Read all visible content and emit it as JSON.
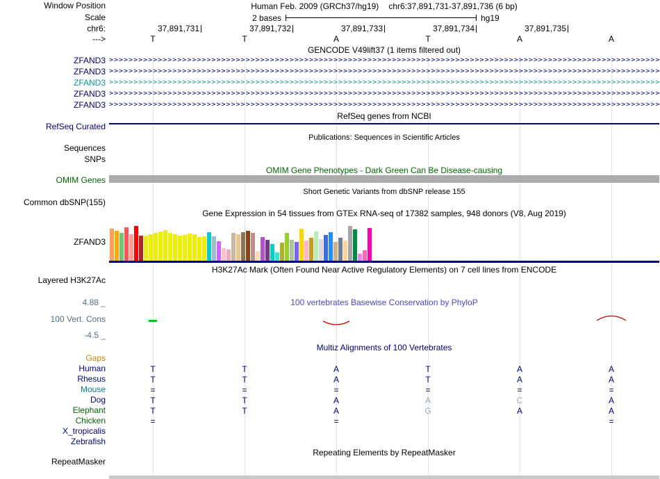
{
  "window_position": {
    "label": "Window Position",
    "assembly": "Human Feb. 2009 (GRCh37/hg19)",
    "range": "chr6:37,891,731-37,891,736 (6 bp)"
  },
  "scale_row": {
    "label": "Scale",
    "value": "2 bases",
    "genome": "hg19"
  },
  "ruler": {
    "label": "chr6:",
    "ticks": [
      "37,891,731",
      "37,891,732",
      "37,891,733",
      "37,891,734",
      "37,891,735"
    ]
  },
  "sequence_row": {
    "label": "--->",
    "bases": [
      "T",
      "T",
      "A",
      "T",
      "A",
      "A"
    ]
  },
  "gencode": {
    "header": "GENCODE V49lift37 (1 items filtered out)",
    "glyph": ">",
    "transcripts": [
      {
        "label": "ZFAND3",
        "color": "#000080"
      },
      {
        "label": "ZFAND3",
        "color": "#000080"
      },
      {
        "label": "ZFAND3",
        "color": "#009999"
      },
      {
        "label": "ZFAND3",
        "color": "#000080"
      },
      {
        "label": "ZFAND3",
        "color": "#000080"
      }
    ]
  },
  "refseq": {
    "header": "RefSeq genes from NCBI",
    "label": "RefSeq Curated",
    "color": "#000080"
  },
  "publications": {
    "header": "Publications: Sequences in Scientific Articles",
    "rows": [
      {
        "label": "Sequences"
      },
      {
        "label": "SNPs"
      }
    ]
  },
  "omim": {
    "header": "OMIM Gene Phenotypes - Dark Green Can Be Disease-causing",
    "header_color": "#006400",
    "label": "OMIM Genes",
    "bar_color": "#acacac"
  },
  "dbsnp": {
    "header": "Short Genetic Variants from dbSNP release 155",
    "label": "Common dbSNP(155)"
  },
  "gtex": {
    "header": "Gene Expression in 54 tissues from GTEx RNA-seq of 17382 samples, 948 donors (V8, Aug 2019)",
    "label": "ZFAND3",
    "baseline_color": "#000080"
  },
  "h3k27ac": {
    "header": "H3K27Ac Mark (Often Found Near Active Regulatory Elements) on 7 cell lines from ENCODE",
    "label": "Layered H3K27Ac"
  },
  "conservation": {
    "header": "100 vertebrates Basewise Conservation by PhyloP",
    "header_color": "#4747d1",
    "label": "100 Vert. Cons",
    "max_label": "4.88 _",
    "min_label": "-4.5 _",
    "label_color": "#4f7087",
    "features": [
      {
        "type": "tick",
        "col": 0,
        "color": "#00c800"
      },
      {
        "type": "dip",
        "col": 2,
        "color": "#dd0000"
      },
      {
        "type": "bump",
        "col": 5,
        "color": "#dd0000"
      }
    ]
  },
  "multiz": {
    "header": "Multiz Alignments of 100 Vertebrates",
    "header_color": "#000080",
    "letter_color": "#000080",
    "muted_color": "#98a8bc",
    "species": [
      {
        "label": "Gaps",
        "color": "#c8860b",
        "cells": [
          "",
          "",
          "",
          "",
          "",
          ""
        ]
      },
      {
        "label": "Human",
        "color": "#000080",
        "cells": [
          "T",
          "T",
          "A",
          "T",
          "A",
          "A"
        ]
      },
      {
        "label": "Rhesus",
        "color": "#000080",
        "cells": [
          "T",
          "T",
          "A",
          "T",
          "A",
          "A"
        ]
      },
      {
        "label": "Mouse",
        "color": "#008080",
        "cells": [
          "=",
          "=",
          "=",
          "=",
          "=",
          "="
        ]
      },
      {
        "label": "Dog",
        "color": "#000080",
        "cells": [
          "T",
          "T",
          "A",
          "A",
          "C",
          "A"
        ],
        "muted": [
          3,
          4
        ]
      },
      {
        "label": "Elephant",
        "color": "#006400",
        "cells": [
          "T",
          "T",
          "A",
          "G",
          "A",
          "A"
        ],
        "muted": [
          3
        ]
      },
      {
        "label": "Chicken",
        "color": "#006400",
        "cells": [
          "=",
          "",
          "=",
          "",
          "",
          "="
        ]
      },
      {
        "label": "X_tropicalis",
        "color": "#000080",
        "cells": [
          "",
          "",
          "",
          "",
          "",
          ""
        ]
      },
      {
        "label": "Zebrafish",
        "color": "#000080",
        "cells": [
          "",
          "",
          "",
          "",
          "",
          ""
        ]
      }
    ]
  },
  "repeatmasker": {
    "header": "Repeating Elements by RepeatMasker",
    "label": "RepeatMasker",
    "bar_color": "#c9c9c9"
  },
  "chart_data": {
    "type": "bar",
    "title": "Gene Expression in 54 tissues from GTEx RNA-seq of 17382 samples, 948 donors (V8, Aug 2019)",
    "gene": "ZFAND3",
    "bars": [
      {
        "color": "#FF9D57",
        "h": 46
      },
      {
        "color": "#FFAA00",
        "h": 43
      },
      {
        "color": "#75C175",
        "h": 40
      },
      {
        "color": "#FF5555",
        "h": 48
      },
      {
        "color": "#FFA099",
        "h": 38
      },
      {
        "color": "#FF0000",
        "h": 50
      },
      {
        "color": "#A52A2A",
        "h": 36
      },
      {
        "color": "#EEEE00",
        "h": 36
      },
      {
        "color": "#EEEE00",
        "h": 38
      },
      {
        "color": "#EEEE00",
        "h": 40
      },
      {
        "color": "#EEEE00",
        "h": 42
      },
      {
        "color": "#EEEE00",
        "h": 44
      },
      {
        "color": "#EEEE00",
        "h": 40
      },
      {
        "color": "#EEEE00",
        "h": 38
      },
      {
        "color": "#EEEE00",
        "h": 36
      },
      {
        "color": "#EEEE00",
        "h": 37
      },
      {
        "color": "#EEEE00",
        "h": 39
      },
      {
        "color": "#EEEE00",
        "h": 38
      },
      {
        "color": "#EEEE00",
        "h": 34
      },
      {
        "color": "#EEEE00",
        "h": 35
      },
      {
        "color": "#00CDCD",
        "h": 41
      },
      {
        "color": "#9AC0CD",
        "h": 35
      },
      {
        "color": "#CC66FF",
        "h": 28
      },
      {
        "color": "#FFC0CB",
        "h": 18
      },
      {
        "color": "#EEA9B8",
        "h": 16
      },
      {
        "color": "#CDB79E",
        "h": 40
      },
      {
        "color": "#EEC591",
        "h": 38
      },
      {
        "color": "#8B7355",
        "h": 41
      },
      {
        "color": "#8B4513",
        "h": 43
      },
      {
        "color": "#BC8F8F",
        "h": 40
      },
      {
        "color": "#FFDAB9",
        "h": 14
      },
      {
        "color": "#B452CD",
        "h": 34
      },
      {
        "color": "#7A378B",
        "h": 30
      },
      {
        "color": "#00CED1",
        "h": 24
      },
      {
        "color": "#40E0D0",
        "h": 12
      },
      {
        "color": "#AFB421",
        "h": 26
      },
      {
        "color": "#9ACD32",
        "h": 40
      },
      {
        "color": "#AEC98F",
        "h": 30
      },
      {
        "color": "#7A67EE",
        "h": 27
      },
      {
        "color": "#FFD700",
        "h": 46
      },
      {
        "color": "#FFB5C5",
        "h": 29
      },
      {
        "color": "#CD9B1D",
        "h": 33
      },
      {
        "color": "#B4EEB4",
        "h": 42
      },
      {
        "color": "#D9D9D9",
        "h": 31
      },
      {
        "color": "#4169E1",
        "h": 37
      },
      {
        "color": "#1E90FF",
        "h": 41
      },
      {
        "color": "#CDB38B",
        "h": 27
      },
      {
        "color": "#708090",
        "h": 33
      },
      {
        "color": "#FFD39B",
        "h": 29
      },
      {
        "color": "#A6A6A6",
        "h": 50
      },
      {
        "color": "#008B45",
        "h": 45
      },
      {
        "color": "#EE82EE",
        "h": 10
      },
      {
        "color": "#FF69B4",
        "h": 15
      },
      {
        "color": "#FF00BB",
        "h": 47
      }
    ]
  }
}
